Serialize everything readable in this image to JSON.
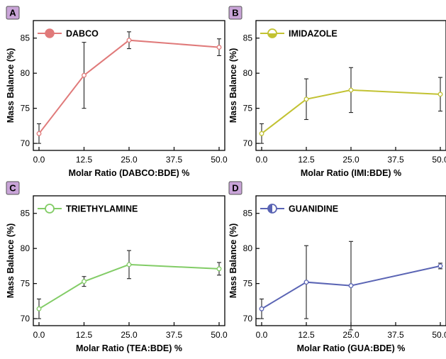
{
  "chart_data": [
    {
      "type": "line",
      "panel_label": "A",
      "x": [
        0.0,
        12.5,
        25.0,
        50.0
      ],
      "xticks": [
        "0.0",
        "12.5",
        "25.0",
        "37.5",
        "50.0"
      ],
      "xlim": [
        0,
        50
      ],
      "yticks": [
        "70",
        "75",
        "80",
        "85"
      ],
      "ylim": [
        69,
        87.5
      ],
      "xlabel": "Molar Ratio (DABCO:BDE) %",
      "ylabel": "Mass Balance (%)",
      "legend_position": "top-left",
      "series": [
        {
          "name": "DABCO",
          "color": "#e07a7a",
          "marker": "filled-circle",
          "values": [
            71.4,
            79.7,
            84.7,
            83.7
          ],
          "errors": [
            1.4,
            4.7,
            1.2,
            1.2
          ]
        }
      ]
    },
    {
      "type": "line",
      "panel_label": "B",
      "x": [
        0.0,
        12.5,
        25.0,
        50.0
      ],
      "xticks": [
        "0.0",
        "12.5",
        "25.0",
        "37.5",
        "50.0"
      ],
      "xlim": [
        0,
        50
      ],
      "yticks": [
        "70",
        "75",
        "80",
        "85"
      ],
      "ylim": [
        69,
        87.5
      ],
      "xlabel": "Molar Ratio (IMI:BDE) %",
      "ylabel": "Mass Balance (%)",
      "legend_position": "top-left",
      "series": [
        {
          "name": "IMIDAZOLE",
          "color": "#c2c232",
          "marker": "half-circle",
          "values": [
            71.4,
            76.3,
            77.6,
            77.0
          ],
          "errors": [
            1.4,
            2.9,
            3.2,
            2.4
          ]
        }
      ]
    },
    {
      "type": "line",
      "panel_label": "C",
      "x": [
        0.0,
        12.5,
        25.0,
        50.0
      ],
      "xticks": [
        "0.0",
        "12.5",
        "25.0",
        "37.5",
        "50.0"
      ],
      "xlim": [
        0,
        50
      ],
      "yticks": [
        "70",
        "75",
        "80",
        "85"
      ],
      "ylim": [
        69,
        87.5
      ],
      "xlabel": "Molar Ratio (TEA:BDE) %",
      "ylabel": "Mass Balance (%)",
      "legend_position": "top-left",
      "series": [
        {
          "name": "TRIETHYLAMINE",
          "color": "#82cc66",
          "marker": "open-circle",
          "values": [
            71.4,
            75.3,
            77.7,
            77.1
          ],
          "errors": [
            1.4,
            0.7,
            2.0,
            0.9
          ]
        }
      ]
    },
    {
      "type": "line",
      "panel_label": "D",
      "x": [
        0.0,
        12.5,
        25.0,
        50.0
      ],
      "xticks": [
        "0.0",
        "12.5",
        "25.0",
        "37.5",
        "50.0"
      ],
      "xlim": [
        0,
        50
      ],
      "yticks": [
        "70",
        "75",
        "80",
        "85"
      ],
      "ylim": [
        69,
        87.5
      ],
      "xlabel": "Molar Ratio (GUA:BDE) %",
      "ylabel": "Mass Balance (%)",
      "legend_position": "top-left",
      "series": [
        {
          "name": "GUANIDINE",
          "color": "#5a64b4",
          "marker": "half-filled-circle",
          "values": [
            71.4,
            75.2,
            74.7,
            77.5
          ],
          "errors": [
            1.4,
            5.2,
            6.3,
            0.4
          ]
        }
      ]
    }
  ],
  "style": {
    "panel_label_bg": "#c9a4d8"
  }
}
